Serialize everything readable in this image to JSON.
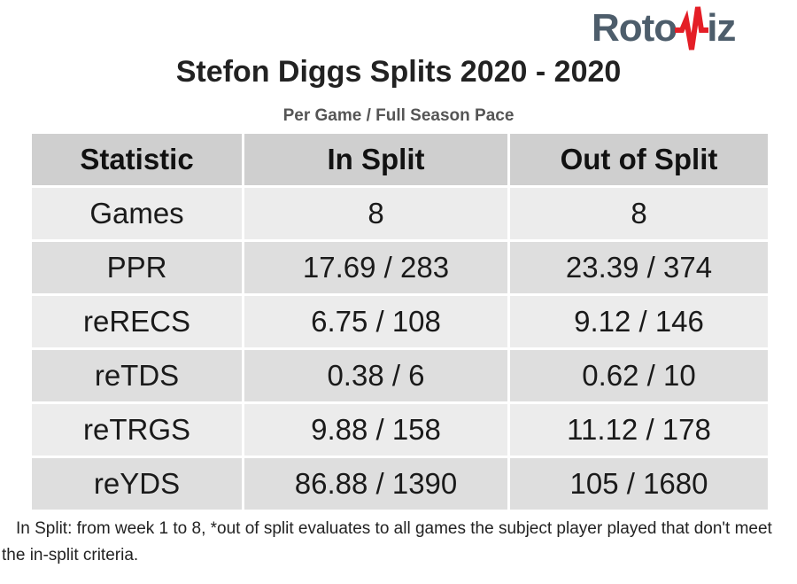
{
  "logo": {
    "text_left": "Roto",
    "text_right": "iz"
  },
  "title": "Stefon Diggs Splits 2020 - 2020",
  "subtitle": "Per Game / Full Season Pace",
  "table": {
    "headers": [
      "Statistic",
      "In Split",
      "Out of Split"
    ],
    "rows": [
      [
        "Games",
        "8",
        "8"
      ],
      [
        "PPR",
        "17.69 / 283",
        "23.39 / 374"
      ],
      [
        "reRECS",
        "6.75 / 108",
        "9.12 / 146"
      ],
      [
        "reTDS",
        "0.38 / 6",
        "0.62 / 10"
      ],
      [
        "reTRGS",
        "9.88 / 158",
        "11.12 / 178"
      ],
      [
        "reYDS",
        "86.88 / 1390",
        "105 / 1680"
      ]
    ]
  },
  "footnote": "In Split: from week 1 to 8,  *out of split evaluates to all games the subject player played that don't meet the in-split criteria.",
  "colors": {
    "logo_gray": "#4d5d6b",
    "logo_red": "#e41e26",
    "header_bg": "#cfcfcf",
    "row_light": "#ececec",
    "row_dark": "#dedede"
  }
}
